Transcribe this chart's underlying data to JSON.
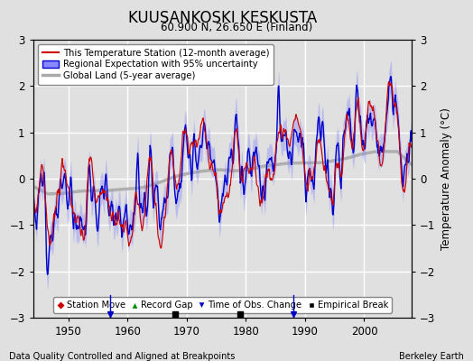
{
  "title": "KUUSANKOSKI KESKUSTA",
  "subtitle": "60.900 N, 26.650 E (Finland)",
  "xlabel_left": "Data Quality Controlled and Aligned at Breakpoints",
  "xlabel_right": "Berkeley Earth",
  "ylabel": "Temperature Anomaly (°C)",
  "xlim": [
    1944,
    2008
  ],
  "ylim": [
    -3.0,
    3.0
  ],
  "yticks": [
    -3,
    -2,
    -1,
    0,
    1,
    2,
    3
  ],
  "xticks": [
    1950,
    1960,
    1970,
    1980,
    1990,
    2000
  ],
  "background_color": "#e0e0e0",
  "plot_bg_color": "#e0e0e0",
  "grid_color": "#ffffff",
  "empirical_break_years": [
    1968,
    1979
  ],
  "obs_change_years": [
    1957,
    1988
  ],
  "station_color": "#cc0000",
  "regional_color": "#0000cc",
  "regional_fill_color": "#8888ff",
  "global_color": "#aaaaaa",
  "seed": 12
}
